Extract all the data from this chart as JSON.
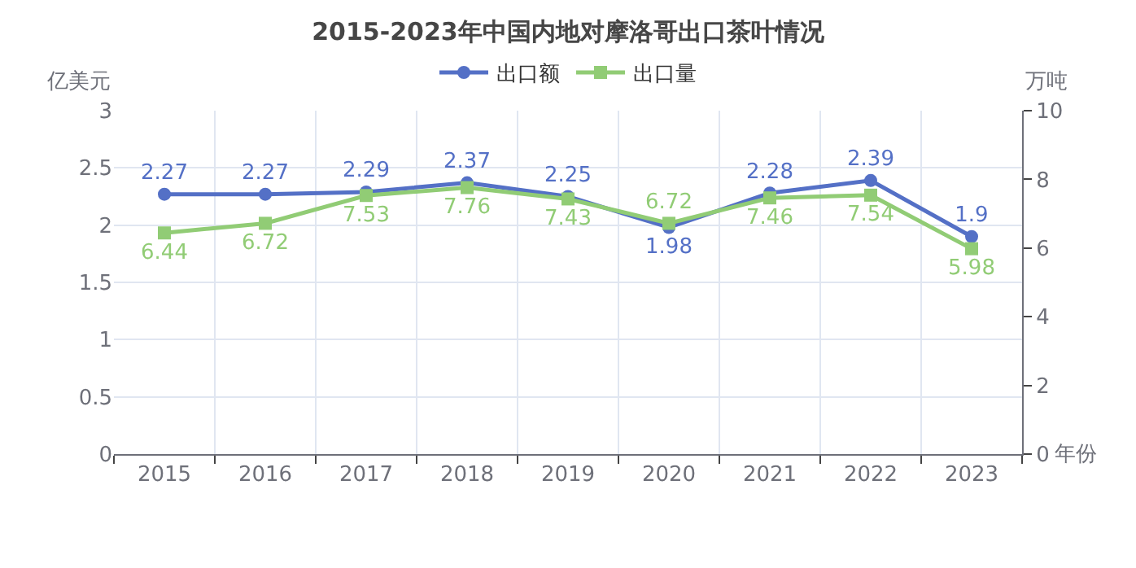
{
  "chart_data": {
    "type": "line",
    "title": "2015-2023年中国内地对摩洛哥出口茶叶情况",
    "xlabel": "年份",
    "ylabel": "亿美元",
    "y2label": "万吨",
    "categories": [
      "2015",
      "2016",
      "2017",
      "2018",
      "2019",
      "2020",
      "2021",
      "2022",
      "2023"
    ],
    "series": [
      {
        "name": "出口额",
        "color": "#5470c6",
        "marker": "circle",
        "values": [
          2.27,
          2.27,
          2.29,
          2.37,
          2.25,
          1.98,
          2.28,
          2.39,
          1.9
        ]
      },
      {
        "name": "出口量",
        "color": "#91cc75",
        "marker": "square",
        "axis": "y2",
        "values": [
          6.44,
          6.72,
          7.53,
          7.76,
          7.43,
          6.72,
          7.46,
          7.54,
          5.98
        ]
      }
    ],
    "ylim": [
      0,
      3
    ],
    "yticks": [
      0,
      0.5,
      1,
      1.5,
      2,
      2.5,
      3
    ],
    "y2lim": [
      0,
      10
    ],
    "y2ticks": [
      0,
      2,
      4,
      6,
      8,
      10
    ],
    "grid": true,
    "legend": "top",
    "data_labels": true,
    "line_style": "solid"
  }
}
